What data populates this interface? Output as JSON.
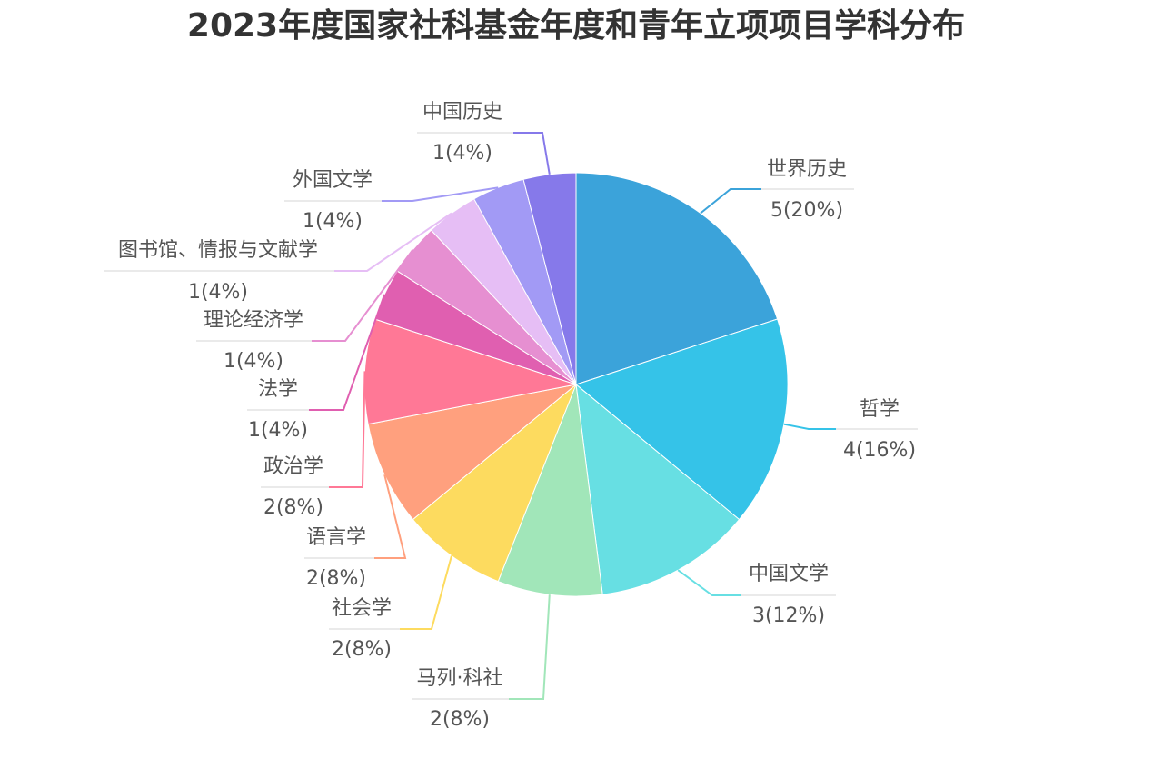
{
  "chart_data": {
    "type": "pie",
    "title": "2023年度国家社科基金年度和青年立项项目学科分布",
    "slices": [
      {
        "label": "世界历史",
        "value": 5,
        "display": "5(20%)",
        "color": "#3BA3DA"
      },
      {
        "label": "哲学",
        "value": 4,
        "display": "4(16%)",
        "color": "#35C3E8"
      },
      {
        "label": "中国文学",
        "value": 3,
        "display": "3(12%)",
        "color": "#67DFE3"
      },
      {
        "label": "马列·科社",
        "value": 2,
        "display": "2(8%)",
        "color": "#A1E6B9"
      },
      {
        "label": "社会学",
        "value": 2,
        "display": "2(8%)",
        "color": "#FDDB5F"
      },
      {
        "label": "语言学",
        "value": 2,
        "display": "2(8%)",
        "color": "#FFA07E"
      },
      {
        "label": "政治学",
        "value": 2,
        "display": "2(8%)",
        "color": "#FF7896"
      },
      {
        "label": "法学",
        "value": 1,
        "display": "1(4%)",
        "color": "#E05FB0"
      },
      {
        "label": "理论经济学",
        "value": 1,
        "display": "1(4%)",
        "color": "#E68FD1"
      },
      {
        "label": "图书馆、情报与文献学",
        "value": 1,
        "display": "1(4%)",
        "color": "#E6BEF5"
      },
      {
        "label": "外国文学",
        "value": 1,
        "display": "1(4%)",
        "color": "#A29AF5"
      },
      {
        "label": "中国历史",
        "value": 1,
        "display": "1(4%)",
        "color": "#8679EA"
      }
    ]
  }
}
